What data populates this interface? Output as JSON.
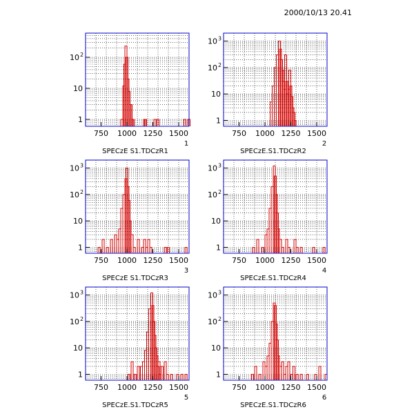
{
  "timestamp": "2000/10/13   20.41",
  "chart_data": [
    {
      "type": "histogram",
      "title": "SPECzE S1.TDCzR1",
      "pad_number": "1",
      "xlim": [
        600,
        1600
      ],
      "y_scale": "log",
      "ylim": [
        0.6,
        600
      ],
      "x_ticks": [
        "750",
        "1000",
        "1250",
        "1500"
      ],
      "y_ticks": [
        {
          "base": "1",
          "exp": ""
        },
        {
          "base": "10",
          "exp": ""
        },
        {
          "base": "10",
          "exp": "2"
        }
      ],
      "grid": true,
      "bin_width": 20,
      "bins": [
        [
          940,
          1
        ],
        [
          960,
          12
        ],
        [
          970,
          60
        ],
        [
          980,
          230
        ],
        [
          990,
          100
        ],
        [
          1000,
          20
        ],
        [
          1010,
          8
        ],
        [
          1020,
          3
        ],
        [
          1030,
          3
        ],
        [
          1040,
          1
        ],
        [
          1050,
          1
        ],
        [
          1160,
          1
        ],
        [
          1170,
          1
        ],
        [
          1260,
          1
        ],
        [
          1290,
          1
        ],
        [
          1550,
          1
        ],
        [
          1590,
          1
        ]
      ]
    },
    {
      "type": "histogram",
      "title": "SPECzE.S1.TDCzR2",
      "pad_number": "2",
      "xlim": [
        600,
        1600
      ],
      "y_scale": "log",
      "ylim": [
        0.6,
        2000
      ],
      "x_ticks": [
        "750",
        "1000",
        "1250",
        "1500"
      ],
      "y_ticks": [
        {
          "base": "1",
          "exp": ""
        },
        {
          "base": "10",
          "exp": ""
        },
        {
          "base": "10",
          "exp": "2"
        },
        {
          "base": "10",
          "exp": "3"
        }
      ],
      "grid": true,
      "bin_width": 20,
      "bins": [
        [
          1050,
          5
        ],
        [
          1070,
          20
        ],
        [
          1090,
          100
        ],
        [
          1110,
          300
        ],
        [
          1130,
          1000
        ],
        [
          1140,
          500
        ],
        [
          1150,
          200
        ],
        [
          1160,
          80
        ],
        [
          1170,
          30
        ],
        [
          1180,
          15
        ],
        [
          1190,
          300
        ],
        [
          1200,
          30
        ],
        [
          1210,
          10
        ],
        [
          1220,
          15
        ],
        [
          1230,
          80
        ],
        [
          1240,
          20
        ],
        [
          1250,
          8
        ],
        [
          1260,
          3
        ],
        [
          1270,
          2
        ],
        [
          1280,
          1
        ]
      ]
    },
    {
      "type": "histogram",
      "title": "SPECzE S1.TDCzR3",
      "pad_number": "3",
      "xlim": [
        600,
        1600
      ],
      "y_scale": "log",
      "ylim": [
        0.6,
        2000
      ],
      "x_ticks": [
        "750",
        "1000",
        "1250",
        "1500"
      ],
      "y_ticks": [
        {
          "base": "1",
          "exp": ""
        },
        {
          "base": "10",
          "exp": ""
        },
        {
          "base": "10",
          "exp": "2"
        },
        {
          "base": "10",
          "exp": "3"
        }
      ],
      "grid": true,
      "bin_width": 20,
      "bins": [
        [
          720,
          1
        ],
        [
          760,
          2
        ],
        [
          800,
          1
        ],
        [
          840,
          2
        ],
        [
          880,
          3
        ],
        [
          900,
          2
        ],
        [
          920,
          5
        ],
        [
          940,
          30
        ],
        [
          960,
          100
        ],
        [
          980,
          400
        ],
        [
          990,
          1000
        ],
        [
          1000,
          200
        ],
        [
          1010,
          60
        ],
        [
          1020,
          10
        ],
        [
          1040,
          3
        ],
        [
          1060,
          1
        ],
        [
          1100,
          2
        ],
        [
          1140,
          1
        ],
        [
          1160,
          2
        ],
        [
          1180,
          1
        ],
        [
          1200,
          2
        ],
        [
          1220,
          1
        ],
        [
          1360,
          1
        ],
        [
          1390,
          1
        ],
        [
          1560,
          1
        ]
      ]
    },
    {
      "type": "histogram",
      "title": "SPECzE.S1.TDCzR4",
      "pad_number": "4",
      "xlim": [
        600,
        1600
      ],
      "y_scale": "log",
      "ylim": [
        0.6,
        2000
      ],
      "x_ticks": [
        "750",
        "1000",
        "1250",
        "1500"
      ],
      "y_ticks": [
        {
          "base": "1",
          "exp": ""
        },
        {
          "base": "10",
          "exp": ""
        },
        {
          "base": "10",
          "exp": "2"
        },
        {
          "base": "10",
          "exp": "3"
        }
      ],
      "grid": true,
      "bin_width": 20,
      "bins": [
        [
          880,
          1
        ],
        [
          920,
          2
        ],
        [
          970,
          1
        ],
        [
          1000,
          3
        ],
        [
          1020,
          5
        ],
        [
          1040,
          30
        ],
        [
          1060,
          200
        ],
        [
          1080,
          1200
        ],
        [
          1090,
          500
        ],
        [
          1100,
          100
        ],
        [
          1110,
          20
        ],
        [
          1120,
          5
        ],
        [
          1140,
          2
        ],
        [
          1160,
          1
        ],
        [
          1200,
          2
        ],
        [
          1220,
          1
        ],
        [
          1280,
          2
        ],
        [
          1300,
          1
        ],
        [
          1340,
          1
        ],
        [
          1460,
          1
        ],
        [
          1560,
          1
        ]
      ]
    },
    {
      "type": "histogram",
      "title": "SPECzE.S1.TDCzR5",
      "pad_number": "5",
      "xlim": [
        600,
        1600
      ],
      "y_scale": "log",
      "ylim": [
        0.6,
        2000
      ],
      "x_ticks": [
        "750",
        "1000",
        "1250",
        "1500"
      ],
      "y_ticks": [
        {
          "base": "1",
          "exp": ""
        },
        {
          "base": "10",
          "exp": ""
        },
        {
          "base": "10",
          "exp": "2"
        },
        {
          "base": "10",
          "exp": "3"
        }
      ],
      "grid": true,
      "bin_width": 20,
      "bins": [
        [
          1010,
          1
        ],
        [
          1040,
          3
        ],
        [
          1070,
          1
        ],
        [
          1100,
          2
        ],
        [
          1130,
          2
        ],
        [
          1150,
          3
        ],
        [
          1170,
          8
        ],
        [
          1190,
          40
        ],
        [
          1210,
          300
        ],
        [
          1230,
          1200
        ],
        [
          1240,
          400
        ],
        [
          1250,
          100
        ],
        [
          1260,
          30
        ],
        [
          1270,
          10
        ],
        [
          1280,
          5
        ],
        [
          1290,
          2
        ],
        [
          1300,
          3
        ],
        [
          1310,
          1
        ],
        [
          1330,
          2
        ],
        [
          1360,
          3
        ],
        [
          1380,
          1
        ],
        [
          1420,
          1
        ],
        [
          1480,
          1
        ],
        [
          1520,
          1
        ],
        [
          1560,
          1
        ]
      ]
    },
    {
      "type": "histogram",
      "title": "SPECzE.S1.TDCzR6",
      "pad_number": "6",
      "xlim": [
        600,
        1600
      ],
      "y_scale": "log",
      "ylim": [
        0.6,
        2000
      ],
      "x_ticks": [
        "750",
        "1000",
        "1250",
        "1500"
      ],
      "y_ticks": [
        {
          "base": "1",
          "exp": ""
        },
        {
          "base": "10",
          "exp": ""
        },
        {
          "base": "10",
          "exp": "2"
        },
        {
          "base": "10",
          "exp": "3"
        }
      ],
      "grid": true,
      "bin_width": 20,
      "bins": [
        [
          870,
          1
        ],
        [
          900,
          2
        ],
        [
          940,
          1
        ],
        [
          980,
          3
        ],
        [
          1000,
          2
        ],
        [
          1020,
          5
        ],
        [
          1040,
          15
        ],
        [
          1060,
          100
        ],
        [
          1080,
          500
        ],
        [
          1090,
          400
        ],
        [
          1100,
          80
        ],
        [
          1110,
          20
        ],
        [
          1120,
          5
        ],
        [
          1140,
          2
        ],
        [
          1160,
          3
        ],
        [
          1180,
          1
        ],
        [
          1200,
          2
        ],
        [
          1220,
          3
        ],
        [
          1250,
          1
        ],
        [
          1270,
          2
        ],
        [
          1300,
          1
        ],
        [
          1340,
          1
        ],
        [
          1400,
          1
        ],
        [
          1480,
          1
        ],
        [
          1520,
          2
        ],
        [
          1580,
          1
        ]
      ]
    }
  ]
}
